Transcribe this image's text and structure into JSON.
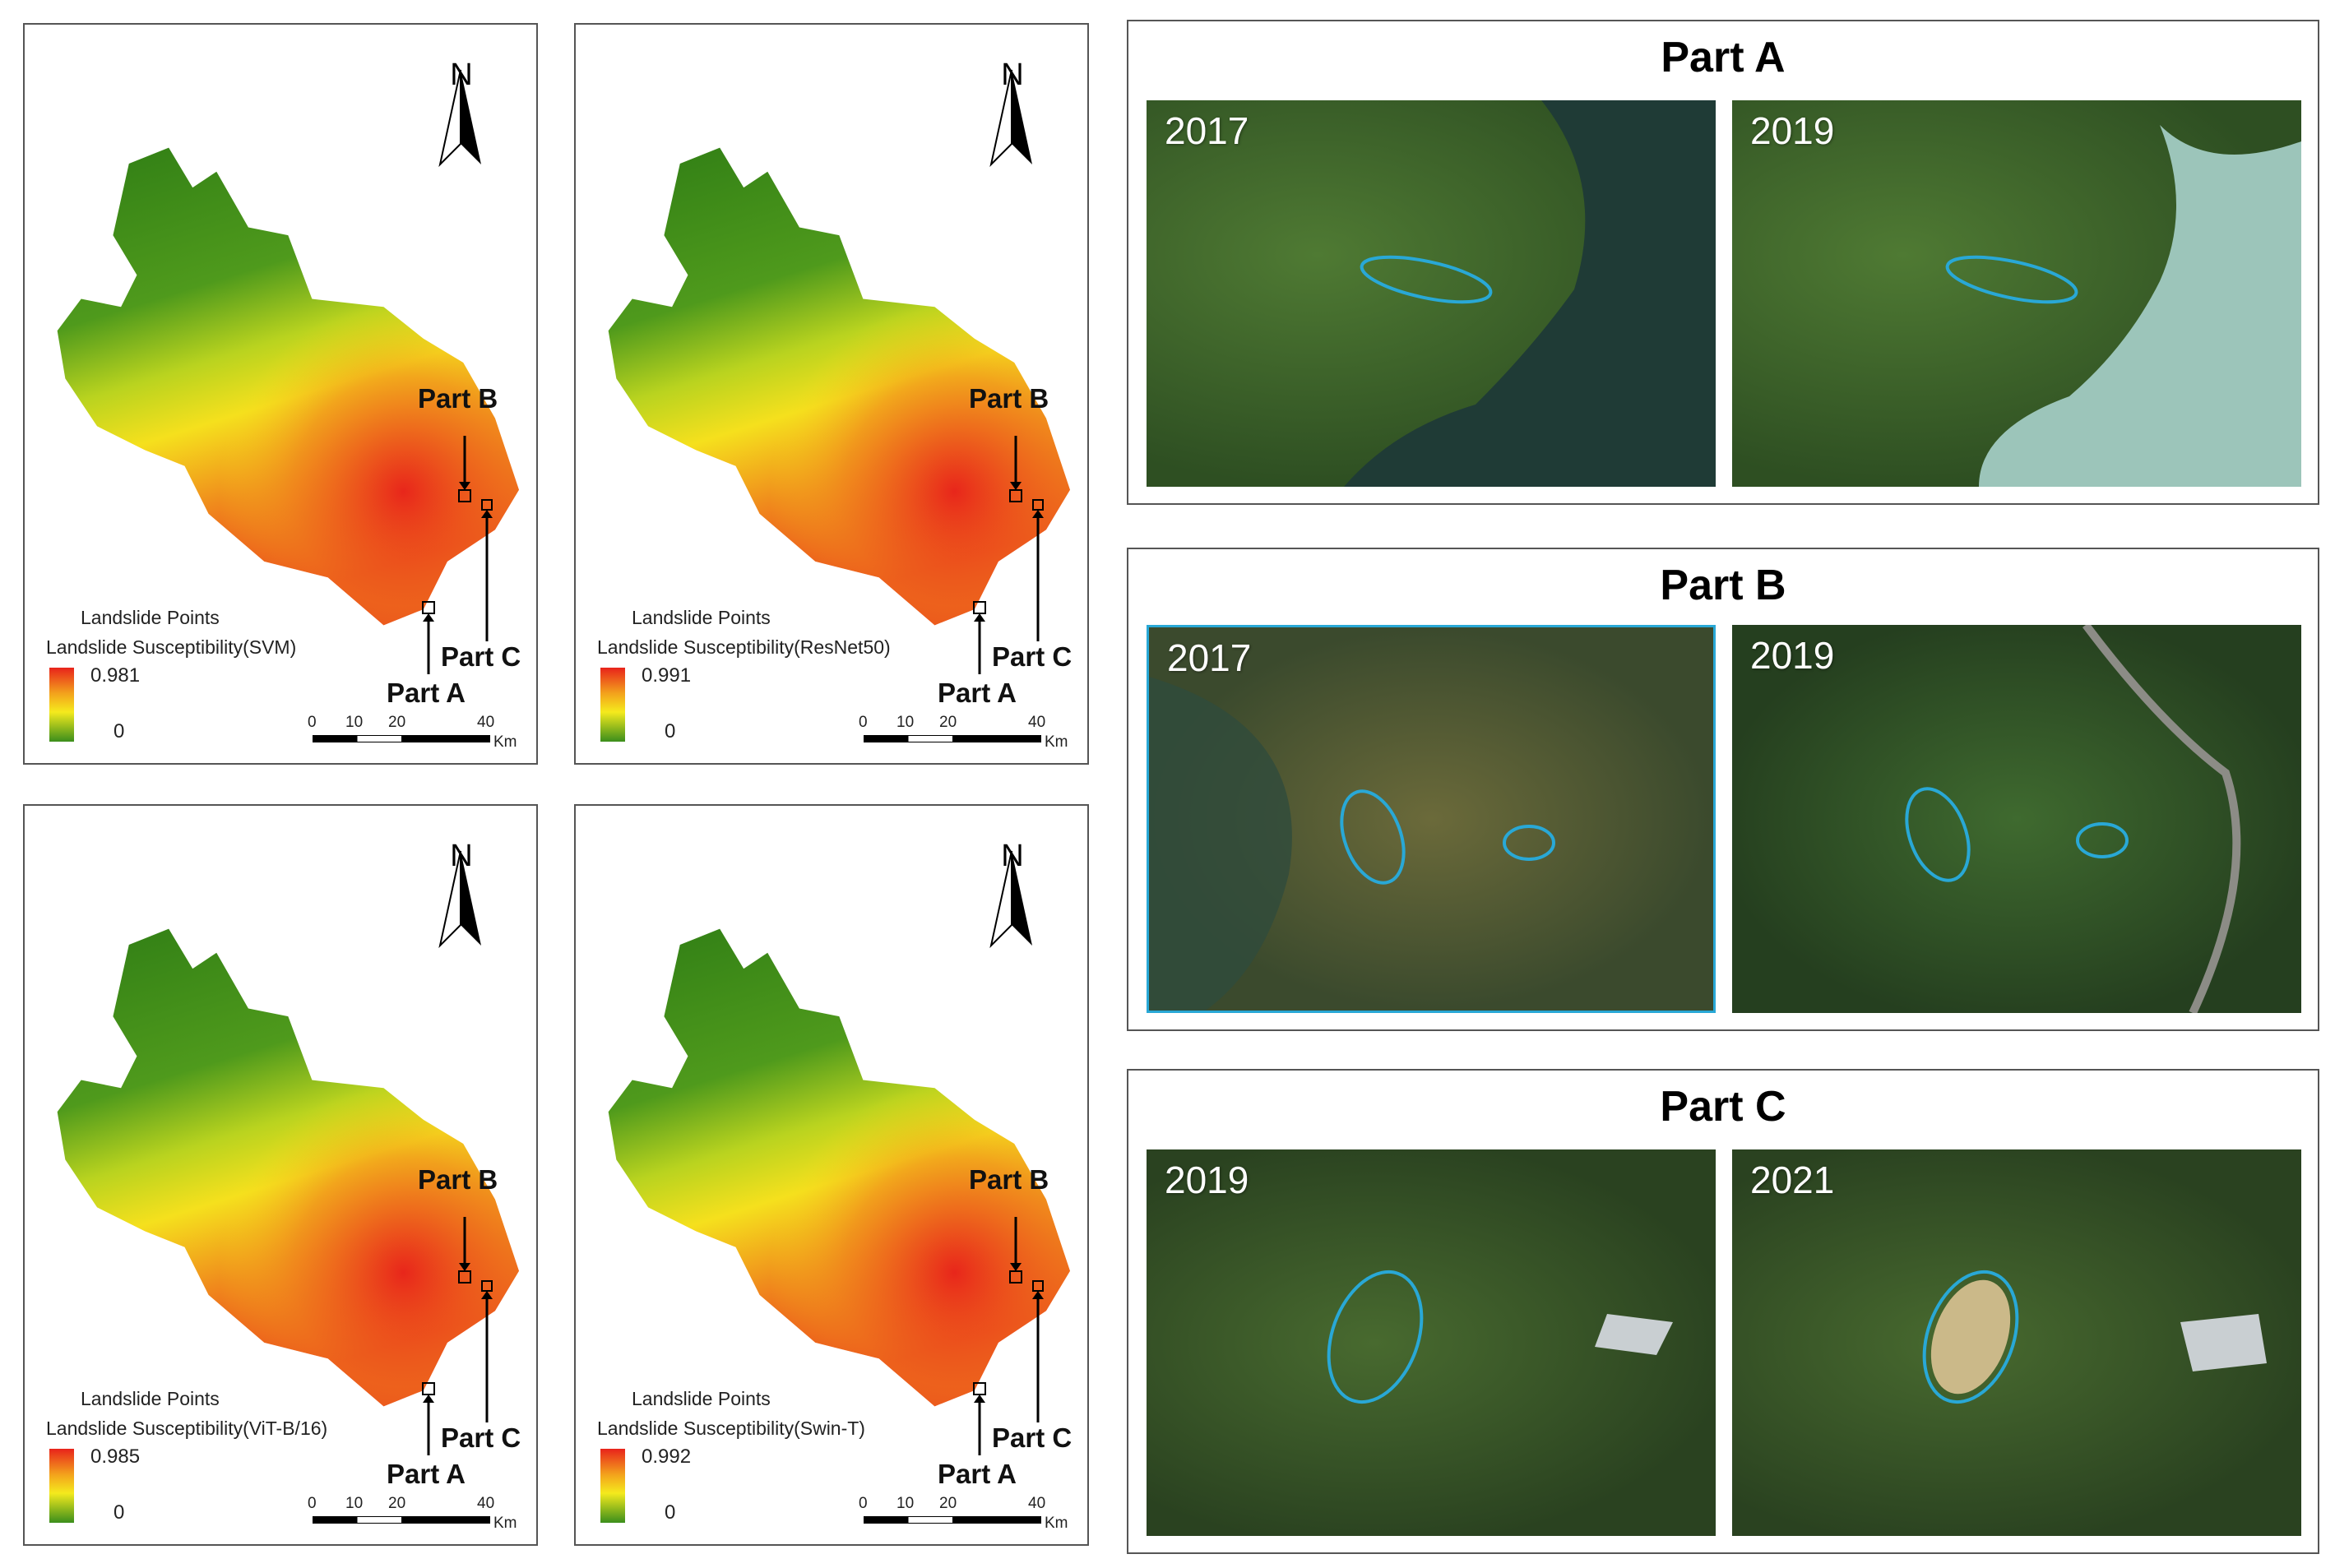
{
  "maps": [
    {
      "id": "svm",
      "north": "N",
      "legend_points": "Landslide Points",
      "legend_title": "Landslide Susceptibility(SVM)",
      "max": "0.981",
      "min": "0",
      "part_a": "Part A",
      "part_b": "Part B",
      "part_c": "Part C"
    },
    {
      "id": "resnet",
      "north": "N",
      "legend_points": "Landslide Points",
      "legend_title": "Landslide Susceptibility(ResNet50)",
      "max": "0.991",
      "min": "0",
      "part_a": "Part A",
      "part_b": "Part B",
      "part_c": "Part C"
    },
    {
      "id": "vit",
      "north": "N",
      "legend_points": "Landslide Points",
      "legend_title": "Landslide Susceptibility(ViT-B/16)",
      "max": "0.985",
      "min": "0",
      "part_a": "Part A",
      "part_b": "Part B",
      "part_c": "Part C"
    },
    {
      "id": "swin",
      "north": "N",
      "legend_points": "Landslide Points",
      "legend_title": "Landslide Susceptibility(Swin-T)",
      "max": "0.992",
      "min": "0",
      "part_a": "Part A",
      "part_b": "Part B",
      "part_c": "Part C"
    }
  ],
  "scale": {
    "t0": "0",
    "t10": "10",
    "t20": "20",
    "t40": "40",
    "unit": "Km"
  },
  "parts": [
    {
      "title": "Part A",
      "left_year": "2017",
      "right_year": "2019"
    },
    {
      "title": "Part B",
      "left_year": "2017",
      "right_year": "2019"
    },
    {
      "title": "Part C",
      "left_year": "2019",
      "right_year": "2021"
    }
  ],
  "colors": {
    "high": "#e8231b",
    "mid": "#f5ea1d",
    "low": "#2f7d15",
    "highlight": "#29a8d6"
  }
}
